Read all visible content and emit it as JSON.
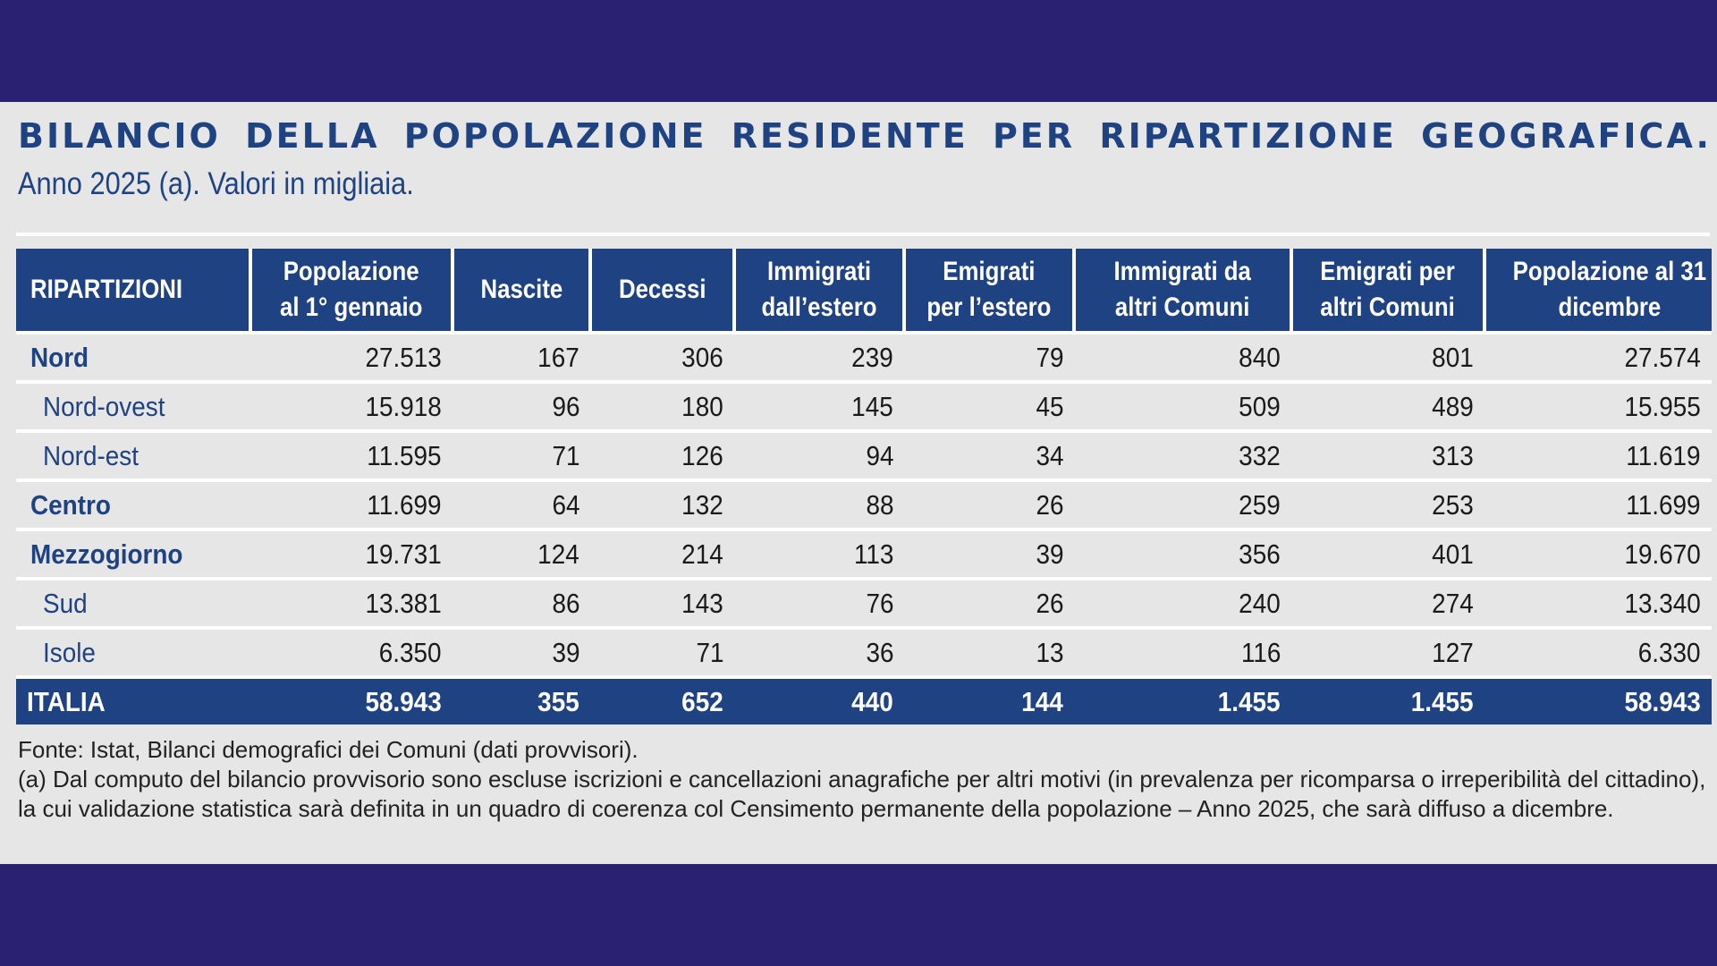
{
  "title_words": [
    "BILANCIO",
    "DELLA",
    "POPOLAZIONE",
    "RESIDENTE",
    "PER",
    "RIPARTIZIONE",
    "GEOGRAFICA."
  ],
  "subtitle": "Anno 2025 (a). Valori in migliaia.",
  "colors": {
    "background": "#2a2172",
    "panel": "#e6e6e6",
    "header": "#1f4283",
    "text_blue": "#1f4283"
  },
  "table": {
    "headers": [
      [
        "RIPARTIZIONI"
      ],
      [
        "Popolazione",
        "al 1° gennaio"
      ],
      [
        "Nascite"
      ],
      [
        "Decessi"
      ],
      [
        "Immigrati",
        "dall’estero"
      ],
      [
        "Emigrati",
        "per l’estero"
      ],
      [
        "Immigrati da",
        "altri Comuni"
      ],
      [
        "Emigrati per",
        "altri Comuni"
      ],
      [
        "Popolazione al 31",
        "dicembre"
      ]
    ],
    "rows": [
      {
        "level": "main",
        "cells": [
          "Nord",
          "27.513",
          "167",
          "306",
          "239",
          "79",
          "840",
          "801",
          "27.574"
        ]
      },
      {
        "level": "sub",
        "cells": [
          "Nord-ovest",
          "15.918",
          "96",
          "180",
          "145",
          "45",
          "509",
          "489",
          "15.955"
        ]
      },
      {
        "level": "sub",
        "cells": [
          "Nord-est",
          "11.595",
          "71",
          "126",
          "94",
          "34",
          "332",
          "313",
          "11.619"
        ]
      },
      {
        "level": "main",
        "cells": [
          "Centro",
          "11.699",
          "64",
          "132",
          "88",
          "26",
          "259",
          "253",
          "11.699"
        ]
      },
      {
        "level": "main",
        "cells": [
          "Mezzogiorno",
          "19.731",
          "124",
          "214",
          "113",
          "39",
          "356",
          "401",
          "19.670"
        ]
      },
      {
        "level": "sub",
        "cells": [
          "Sud",
          "13.381",
          "86",
          "143",
          "76",
          "26",
          "240",
          "274",
          "13.340"
        ]
      },
      {
        "level": "sub",
        "cells": [
          "Isole",
          "6.350",
          "39",
          "71",
          "36",
          "13",
          "116",
          "127",
          "6.330"
        ]
      },
      {
        "level": "total",
        "cells": [
          "ITALIA",
          "58.943",
          "355",
          "652",
          "440",
          "144",
          "1.455",
          "1.455",
          "58.943"
        ]
      }
    ]
  },
  "notes": [
    "Fonte: Istat, Bilanci demografici dei Comuni (dati provvisori).",
    "(a) Dal computo del bilancio provvisorio sono escluse iscrizioni e cancellazioni anagrafiche per altri motivi (in prevalenza per ricomparsa o irreperibilità del cittadino), la cui validazione statistica sarà definita in un quadro di coerenza col Censimento permanente della popolazione – Anno 2025, che sarà diffuso a dicembre."
  ]
}
